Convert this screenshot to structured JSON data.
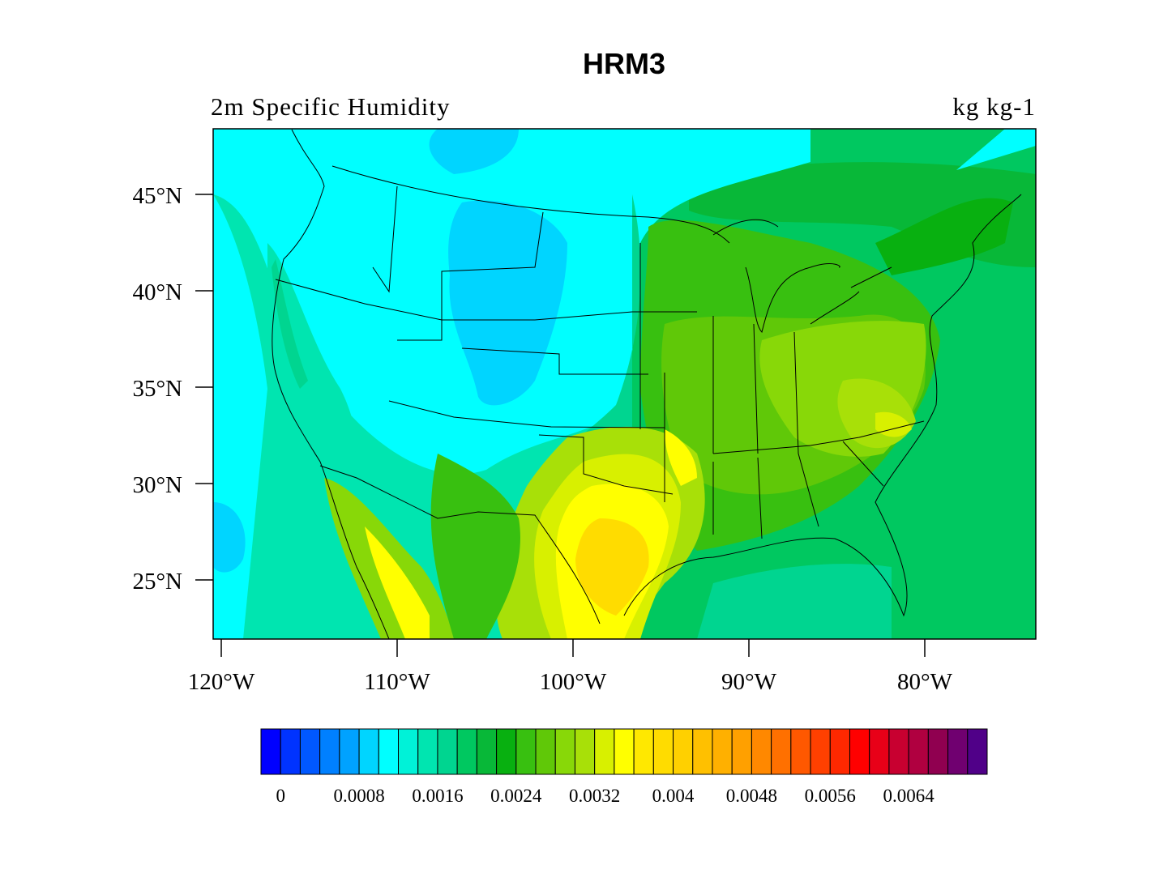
{
  "title": "HRM3",
  "subtitle_left": "2m Specific Humidity",
  "subtitle_right": "kg kg-1",
  "map": {
    "projection": "lat-lon",
    "lon_ticks": [
      {
        "value": -120,
        "label": "120°W"
      },
      {
        "value": -110,
        "label": "110°W"
      },
      {
        "value": -100,
        "label": "100°W"
      },
      {
        "value": -90,
        "label": "90°W"
      },
      {
        "value": -80,
        "label": "80°W"
      }
    ],
    "lat_ticks": [
      {
        "value": 45,
        "label": "45°N"
      },
      {
        "value": 40,
        "label": "40°N"
      },
      {
        "value": 35,
        "label": "35°N"
      },
      {
        "value": 30,
        "label": "30°N"
      },
      {
        "value": 25,
        "label": "25°N"
      }
    ],
    "boundaries": "US states, coastlines, Great Lakes"
  },
  "colorbar": {
    "colors": [
      "#0000ff",
      "#0033ff",
      "#0058ff",
      "#0080ff",
      "#00a2ff",
      "#00d5ff",
      "#00ffff",
      "#00f2d8",
      "#00e5b0",
      "#00d590",
      "#00c860",
      "#08b838",
      "#08b010",
      "#38c010",
      "#60c808",
      "#88d808",
      "#a8e008",
      "#d8f000",
      "#ffff00",
      "#ffe800",
      "#ffdc00",
      "#ffd000",
      "#ffc000",
      "#ffb000",
      "#ffa000",
      "#ff8800",
      "#ff7000",
      "#ff5800",
      "#ff4000",
      "#ff2800",
      "#ff0000",
      "#e80018",
      "#c80030",
      "#b00040",
      "#900050",
      "#700070",
      "#500088"
    ],
    "level_start": 0,
    "level_step": 0.0002,
    "labels": [
      "0",
      "0.0008",
      "0.0016",
      "0.0024",
      "0.0032",
      "0.004",
      "0.0048",
      "0.0056",
      "0.0064"
    ]
  }
}
